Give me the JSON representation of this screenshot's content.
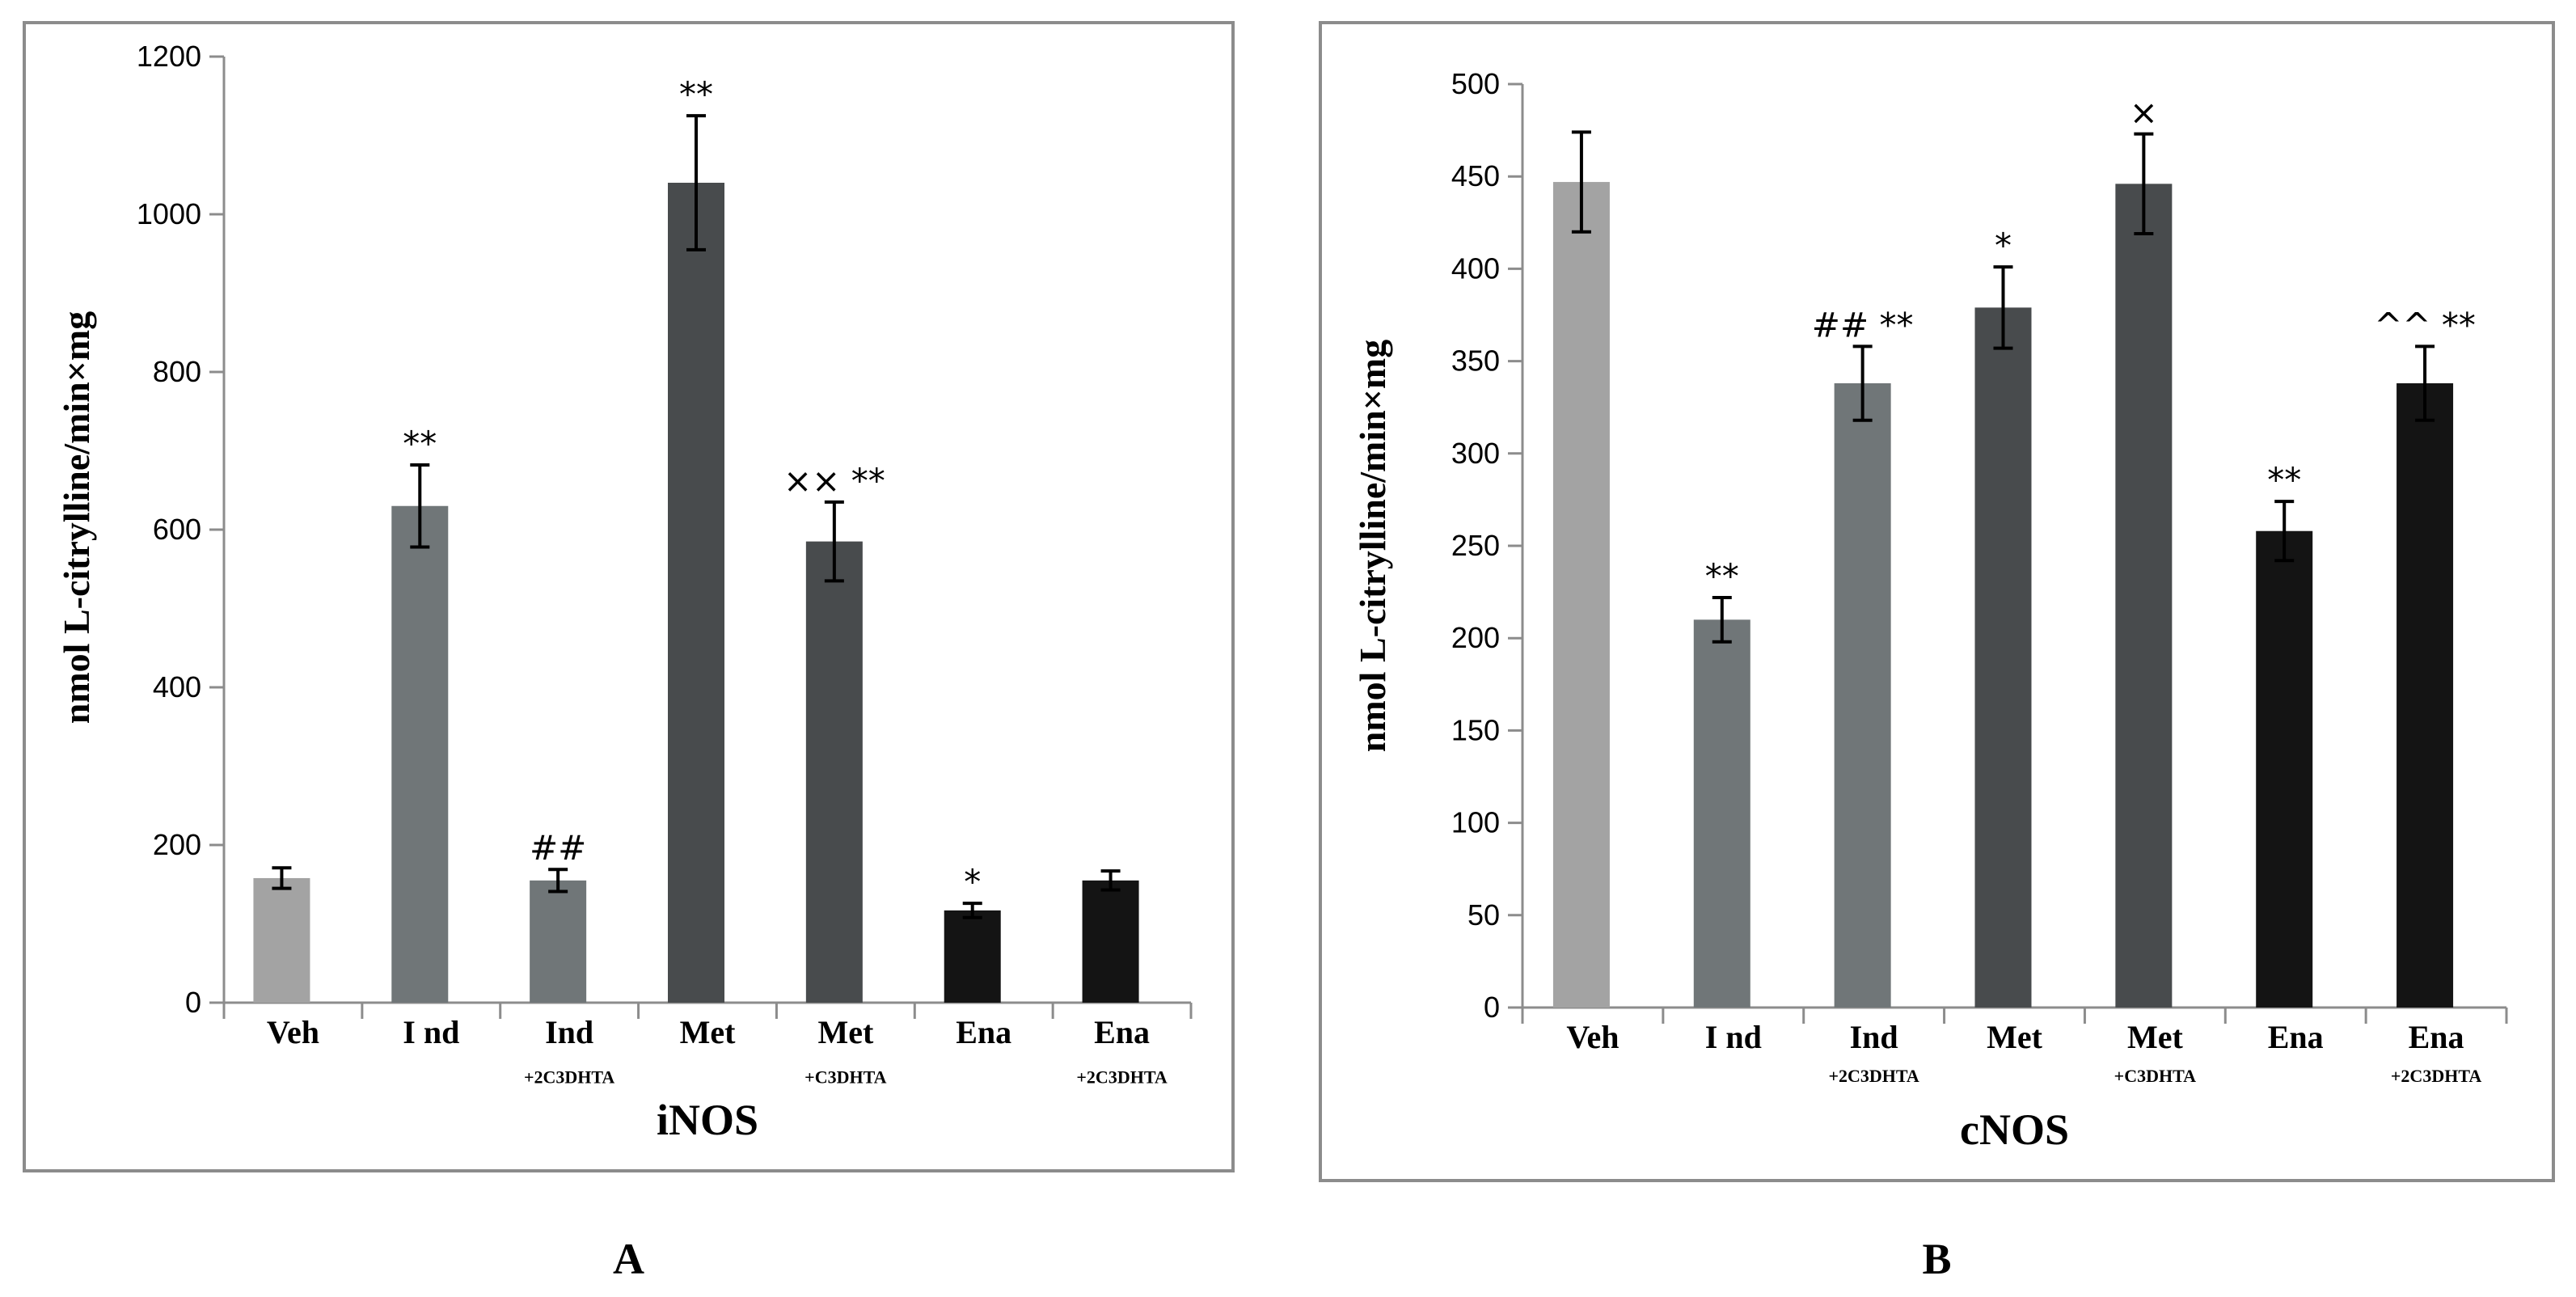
{
  "chart_data": [
    {
      "panel_label": "A",
      "type": "bar",
      "xlabel": "iNOS",
      "ylabel": "nmol L-citrylline/min×mg",
      "ylim": [
        0,
        1200
      ],
      "yticks": [
        0,
        200,
        400,
        600,
        800,
        1000,
        1200
      ],
      "categories": [
        {
          "label": "Veh",
          "sub": ""
        },
        {
          "label": "I nd",
          "sub": ""
        },
        {
          "label": "Ind",
          "sub": "+2C3DHTA"
        },
        {
          "label": "Met",
          "sub": ""
        },
        {
          "label": "Met",
          "sub": "+C3DHTA"
        },
        {
          "label": "Ena",
          "sub": ""
        },
        {
          "label": "Ena",
          "sub": "+2C3DHTA"
        }
      ],
      "values": [
        158,
        630,
        155,
        1040,
        585,
        117,
        155
      ],
      "errors": [
        13,
        52,
        14,
        85,
        50,
        9,
        12
      ],
      "annotations": [
        "",
        "**",
        "##",
        "**",
        "×× **",
        "*",
        ""
      ],
      "colors": [
        "#a3a3a3",
        "#707678",
        "#707678",
        "#484b4d",
        "#484b4d",
        "#141414",
        "#141414"
      ]
    },
    {
      "panel_label": "B",
      "type": "bar",
      "xlabel": "cNOS",
      "ylabel": "nmol L-citrylline/min×mg",
      "ylim": [
        0,
        500
      ],
      "yticks": [
        0,
        50,
        100,
        150,
        200,
        250,
        300,
        350,
        400,
        450,
        500
      ],
      "categories": [
        {
          "label": "Veh",
          "sub": ""
        },
        {
          "label": "I nd",
          "sub": ""
        },
        {
          "label": "Ind",
          "sub": "+2C3DHTA"
        },
        {
          "label": "Met",
          "sub": ""
        },
        {
          "label": "Met",
          "sub": "+C3DHTA"
        },
        {
          "label": "Ena",
          "sub": ""
        },
        {
          "label": "Ena",
          "sub": "+2C3DHTA"
        }
      ],
      "values": [
        447,
        210,
        338,
        379,
        446,
        258,
        338
      ],
      "errors": [
        27,
        12,
        20,
        22,
        27,
        16,
        20
      ],
      "annotations": [
        "",
        "**",
        "## **",
        "*",
        "×",
        "**",
        "^^ **"
      ],
      "colors": [
        "#a3a3a3",
        "#707678",
        "#707678",
        "#484b4d",
        "#484b4d",
        "#141414",
        "#141414"
      ]
    }
  ]
}
